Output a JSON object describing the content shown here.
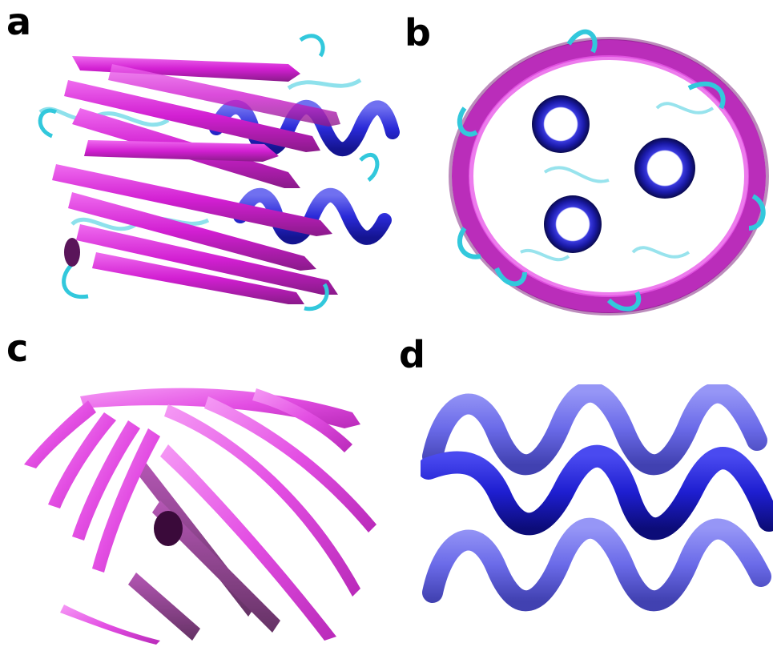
{
  "figure": {
    "panels": [
      {
        "id": "a",
        "label": "a"
      },
      {
        "id": "b",
        "label": "b"
      },
      {
        "id": "c",
        "label": "c"
      },
      {
        "id": "d",
        "label": "d"
      }
    ]
  },
  "colors": {
    "beta_strand": "#d21fd2",
    "beta_strand_light": "#e85ae8",
    "beta_strand_dark": "#7a1a7a",
    "loop": "#32c8dc",
    "helix": "#2a2ad8",
    "helix_light": "#6a6af0",
    "helix_dark": "#10108a"
  }
}
